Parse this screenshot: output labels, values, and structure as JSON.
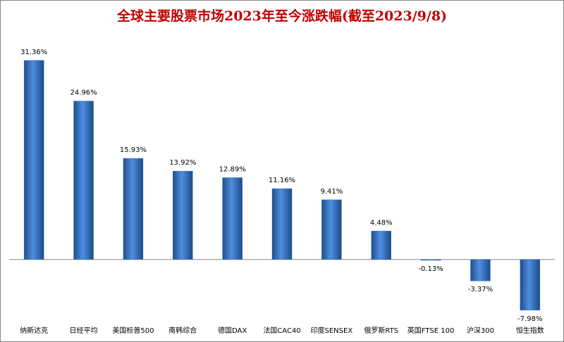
{
  "chart_data": {
    "type": "bar",
    "title": "全球主要股票市场2023年至今涨跌幅(截至2023/9/8)",
    "categories": [
      "纳斯达克",
      "日经平均",
      "美国标普500",
      "南韩综合",
      "德国DAX",
      "法国CAC40",
      "印度SENSEX",
      "俄罗斯RTS",
      "英国FTSE 100",
      "沪深300",
      "恒生指数"
    ],
    "values": [
      31.36,
      24.96,
      15.93,
      13.92,
      12.89,
      11.16,
      9.41,
      4.48,
      -0.13,
      -3.37,
      -7.98
    ],
    "value_labels": [
      "31.36%",
      "24.96%",
      "15.93%",
      "13.92%",
      "12.89%",
      "11.16%",
      "9.41%",
      "4.48%",
      "-0.13%",
      "-3.37%",
      "-7.98%"
    ],
    "color": "#3a78c8",
    "ylim": [
      -10,
      35
    ]
  }
}
